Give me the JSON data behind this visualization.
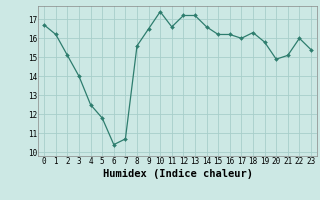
{
  "x": [
    0,
    1,
    2,
    3,
    4,
    5,
    6,
    7,
    8,
    9,
    10,
    11,
    12,
    13,
    14,
    15,
    16,
    17,
    18,
    19,
    20,
    21,
    22,
    23
  ],
  "y": [
    16.7,
    16.2,
    15.1,
    14.0,
    12.5,
    11.8,
    10.4,
    10.7,
    15.6,
    16.5,
    17.4,
    16.6,
    17.2,
    17.2,
    16.6,
    16.2,
    16.2,
    16.0,
    16.3,
    15.8,
    14.9,
    15.1,
    16.0,
    15.4
  ],
  "xlabel": "Humidex (Indice chaleur)",
  "ylim": [
    9.8,
    17.7
  ],
  "xlim": [
    -0.5,
    23.5
  ],
  "yticks": [
    10,
    11,
    12,
    13,
    14,
    15,
    16,
    17
  ],
  "xticks": [
    0,
    1,
    2,
    3,
    4,
    5,
    6,
    7,
    8,
    9,
    10,
    11,
    12,
    13,
    14,
    15,
    16,
    17,
    18,
    19,
    20,
    21,
    22,
    23
  ],
  "line_color": "#2e7d6e",
  "marker_color": "#2e7d6e",
  "bg_color": "#cce8e4",
  "grid_color": "#a8ceca",
  "tick_label_fontsize": 5.5,
  "xlabel_fontsize": 7.5
}
